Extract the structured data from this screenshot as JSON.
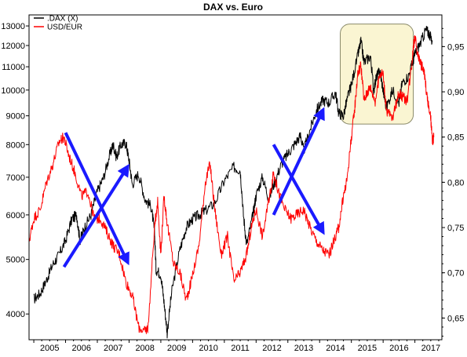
{
  "chart_data": {
    "type": "line",
    "title": "DAX vs. Euro",
    "xlabel": "",
    "ylabel_left": "",
    "ylabel_right": "",
    "x_range": [
      2004.85,
      2017.85
    ],
    "x_ticks": [
      "2005",
      "2006",
      "2007",
      "2008",
      "2009",
      "2010",
      "2011",
      "2012",
      "2013",
      "2014",
      "2015",
      "2016",
      "2017"
    ],
    "y_left": {
      "scale": "log",
      "range": [
        3600,
        13600
      ],
      "ticks": [
        4000,
        5000,
        6000,
        7000,
        8000,
        9000,
        10000,
        11000,
        12000,
        13000
      ]
    },
    "y_right": {
      "scale": "linear",
      "range": [
        0.626,
        0.985
      ],
      "ticks": [
        "0,65",
        "0,70",
        "0,75",
        "0,80",
        "0,85",
        "0,90",
        "0,95"
      ]
    },
    "grid": "off",
    "legend_position": "top-left",
    "series": [
      {
        "name": ".DAX (X)",
        "color": "#000000",
        "axis": "left",
        "points": [
          [
            2005.0,
            4250
          ],
          [
            2005.2,
            4350
          ],
          [
            2005.4,
            4600
          ],
          [
            2005.6,
            4900
          ],
          [
            2005.8,
            5100
          ],
          [
            2006.0,
            5400
          ],
          [
            2006.2,
            5900
          ],
          [
            2006.35,
            6000
          ],
          [
            2006.45,
            5400
          ],
          [
            2006.6,
            5700
          ],
          [
            2006.8,
            6000
          ],
          [
            2007.0,
            6600
          ],
          [
            2007.2,
            7000
          ],
          [
            2007.4,
            7700
          ],
          [
            2007.5,
            8000
          ],
          [
            2007.6,
            7600
          ],
          [
            2007.75,
            8000
          ],
          [
            2007.9,
            8050
          ],
          [
            2008.0,
            7500
          ],
          [
            2008.1,
            6800
          ],
          [
            2008.3,
            7100
          ],
          [
            2008.5,
            6400
          ],
          [
            2008.7,
            6200
          ],
          [
            2008.8,
            5600
          ],
          [
            2008.85,
            4800
          ],
          [
            2009.0,
            4700
          ],
          [
            2009.1,
            4200
          ],
          [
            2009.2,
            3700
          ],
          [
            2009.35,
            4400
          ],
          [
            2009.6,
            5200
          ],
          [
            2009.8,
            5700
          ],
          [
            2010.0,
            5900
          ],
          [
            2010.2,
            6000
          ],
          [
            2010.4,
            6100
          ],
          [
            2010.7,
            6300
          ],
          [
            2011.0,
            6900
          ],
          [
            2011.3,
            7300
          ],
          [
            2011.5,
            7200
          ],
          [
            2011.6,
            6000
          ],
          [
            2011.7,
            5300
          ],
          [
            2011.9,
            6000
          ],
          [
            2012.0,
            6500
          ],
          [
            2012.2,
            7000
          ],
          [
            2012.4,
            6400
          ],
          [
            2012.6,
            6900
          ],
          [
            2012.8,
            7400
          ],
          [
            2013.0,
            7700
          ],
          [
            2013.2,
            8000
          ],
          [
            2013.4,
            8300
          ],
          [
            2013.5,
            7800
          ],
          [
            2013.7,
            8500
          ],
          [
            2013.9,
            9200
          ],
          [
            2014.1,
            9600
          ],
          [
            2014.3,
            9500
          ],
          [
            2014.5,
            9900
          ],
          [
            2014.6,
            9100
          ],
          [
            2014.75,
            9000
          ],
          [
            2014.9,
            9800
          ],
          [
            2015.0,
            10200
          ],
          [
            2015.2,
            11500
          ],
          [
            2015.3,
            12200
          ],
          [
            2015.4,
            11200
          ],
          [
            2015.6,
            11500
          ],
          [
            2015.7,
            10000
          ],
          [
            2015.8,
            10600
          ],
          [
            2015.9,
            10800
          ],
          [
            2016.0,
            10000
          ],
          [
            2016.1,
            9300
          ],
          [
            2016.3,
            10000
          ],
          [
            2016.5,
            9500
          ],
          [
            2016.6,
            10300
          ],
          [
            2016.8,
            10600
          ],
          [
            2016.95,
            11300
          ],
          [
            2017.0,
            11600
          ],
          [
            2017.2,
            12200
          ],
          [
            2017.35,
            12800
          ],
          [
            2017.45,
            12600
          ],
          [
            2017.55,
            12200
          ]
        ]
      },
      {
        "name": "USD/EUR",
        "color": "#ff0000",
        "axis": "right",
        "points": [
          [
            2004.85,
            0.735
          ],
          [
            2005.0,
            0.76
          ],
          [
            2005.2,
            0.77
          ],
          [
            2005.4,
            0.8
          ],
          [
            2005.6,
            0.82
          ],
          [
            2005.8,
            0.845
          ],
          [
            2005.95,
            0.85
          ],
          [
            2006.1,
            0.83
          ],
          [
            2006.3,
            0.81
          ],
          [
            2006.5,
            0.785
          ],
          [
            2006.7,
            0.79
          ],
          [
            2006.9,
            0.76
          ],
          [
            2007.1,
            0.76
          ],
          [
            2007.3,
            0.745
          ],
          [
            2007.5,
            0.73
          ],
          [
            2007.7,
            0.72
          ],
          [
            2007.9,
            0.69
          ],
          [
            2008.1,
            0.675
          ],
          [
            2008.3,
            0.64
          ],
          [
            2008.5,
            0.635
          ],
          [
            2008.6,
            0.64
          ],
          [
            2008.8,
            0.75
          ],
          [
            2008.9,
            0.78
          ],
          [
            2009.0,
            0.72
          ],
          [
            2009.1,
            0.785
          ],
          [
            2009.2,
            0.755
          ],
          [
            2009.4,
            0.71
          ],
          [
            2009.6,
            0.7
          ],
          [
            2009.8,
            0.67
          ],
          [
            2009.95,
            0.69
          ],
          [
            2010.2,
            0.73
          ],
          [
            2010.4,
            0.8
          ],
          [
            2010.55,
            0.82
          ],
          [
            2010.7,
            0.77
          ],
          [
            2010.9,
            0.72
          ],
          [
            2011.1,
            0.74
          ],
          [
            2011.3,
            0.69
          ],
          [
            2011.5,
            0.7
          ],
          [
            2011.7,
            0.72
          ],
          [
            2011.85,
            0.75
          ],
          [
            2012.0,
            0.77
          ],
          [
            2012.2,
            0.74
          ],
          [
            2012.4,
            0.78
          ],
          [
            2012.55,
            0.81
          ],
          [
            2012.7,
            0.79
          ],
          [
            2012.9,
            0.77
          ],
          [
            2013.1,
            0.76
          ],
          [
            2013.3,
            0.765
          ],
          [
            2013.5,
            0.77
          ],
          [
            2013.7,
            0.75
          ],
          [
            2013.9,
            0.735
          ],
          [
            2014.1,
            0.725
          ],
          [
            2014.3,
            0.72
          ],
          [
            2014.5,
            0.74
          ],
          [
            2014.6,
            0.75
          ],
          [
            2014.75,
            0.785
          ],
          [
            2014.85,
            0.8
          ],
          [
            2015.0,
            0.85
          ],
          [
            2015.1,
            0.88
          ],
          [
            2015.2,
            0.92
          ],
          [
            2015.3,
            0.93
          ],
          [
            2015.4,
            0.89
          ],
          [
            2015.5,
            0.9
          ],
          [
            2015.6,
            0.905
          ],
          [
            2015.75,
            0.89
          ],
          [
            2015.9,
            0.92
          ],
          [
            2016.0,
            0.92
          ],
          [
            2016.1,
            0.88
          ],
          [
            2016.3,
            0.87
          ],
          [
            2016.5,
            0.9
          ],
          [
            2016.6,
            0.895
          ],
          [
            2016.75,
            0.89
          ],
          [
            2016.9,
            0.93
          ],
          [
            2016.95,
            0.95
          ],
          [
            2017.0,
            0.96
          ],
          [
            2017.1,
            0.94
          ],
          [
            2017.2,
            0.93
          ],
          [
            2017.3,
            0.92
          ],
          [
            2017.4,
            0.89
          ],
          [
            2017.5,
            0.87
          ],
          [
            2017.55,
            0.845
          ],
          [
            2017.6,
            0.85
          ]
        ]
      }
    ],
    "annotations": [
      {
        "kind": "arrow",
        "color": "#1a1aff",
        "axis": "left",
        "from": [
          2006.0,
          8400
        ],
        "to": [
          2007.95,
          4950
        ]
      },
      {
        "kind": "arrow",
        "color": "#1a1aff",
        "axis": "left",
        "from": [
          2005.95,
          4850
        ],
        "to": [
          2007.95,
          7300
        ]
      },
      {
        "kind": "arrow",
        "color": "#1a1aff",
        "axis": "left",
        "from": [
          2012.55,
          8000
        ],
        "to": [
          2014.1,
          5600
        ]
      },
      {
        "kind": "arrow",
        "color": "#1a1aff",
        "axis": "left",
        "from": [
          2012.55,
          6000
        ],
        "to": [
          2014.1,
          9200
        ]
      },
      {
        "kind": "highlight-box",
        "fill": "#faf5d2",
        "stroke": "#8a8a6a",
        "axis": "left",
        "from": [
          2014.65,
          13100
        ],
        "to": [
          2016.95,
          8700
        ]
      }
    ]
  }
}
